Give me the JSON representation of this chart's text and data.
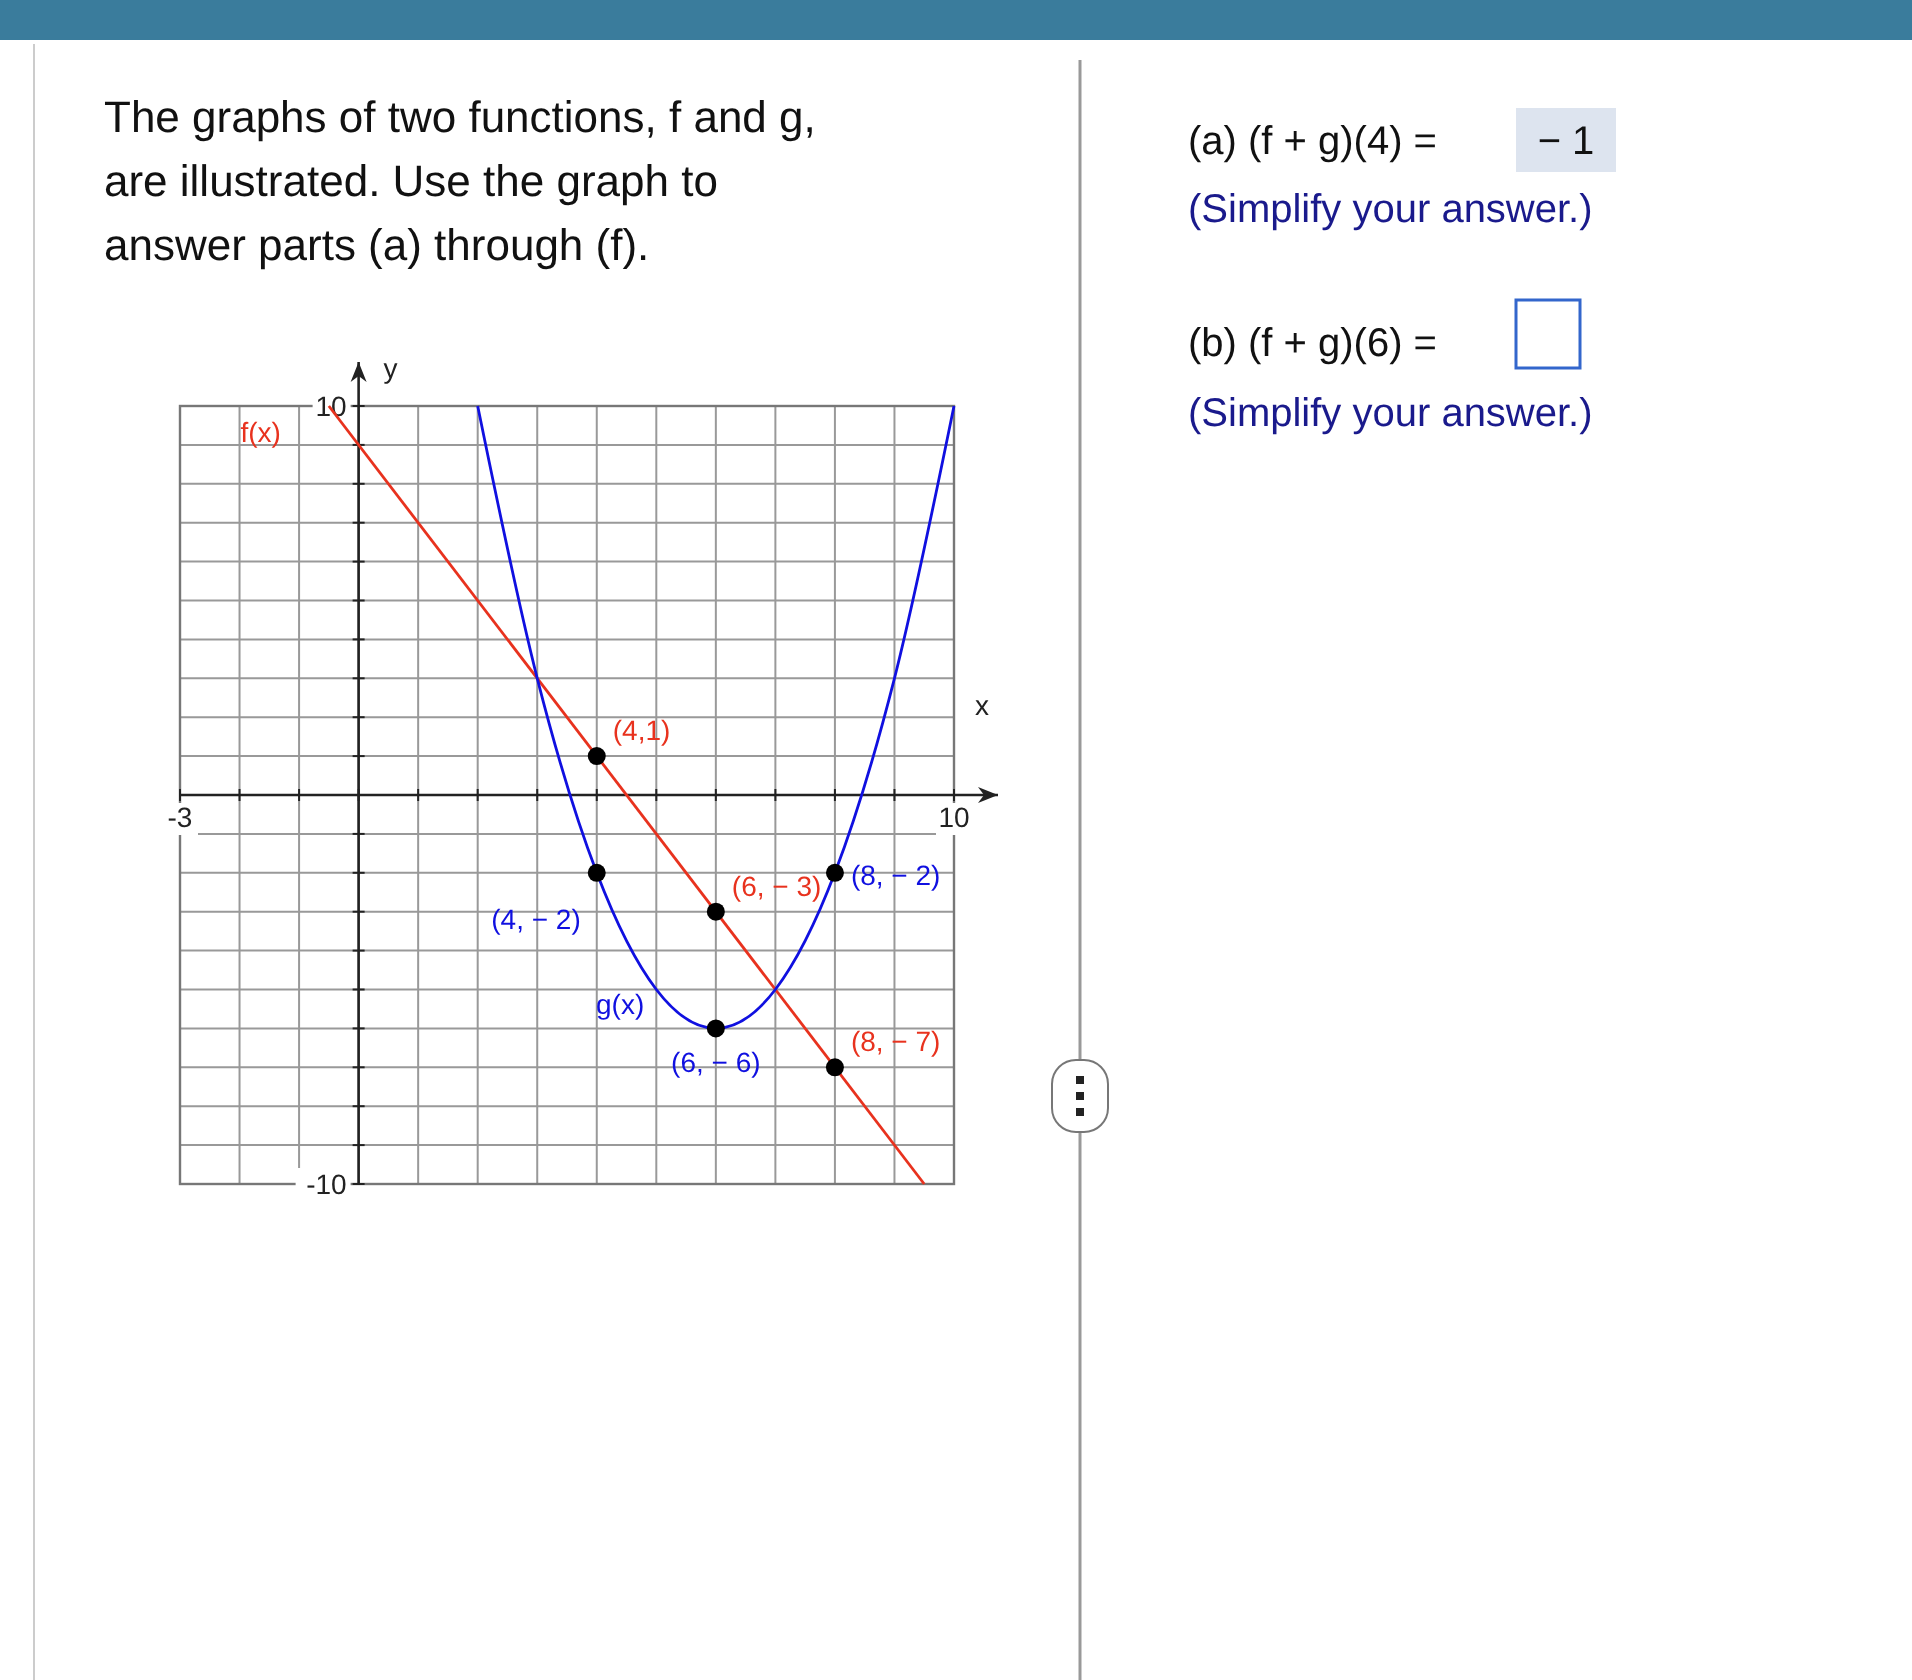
{
  "chart_data": [
    {
      "type": "line",
      "title": "The graphs of two functions, f and g, are illustrated. Use the graph to answer parts (a) through (f).",
      "xlabel": "x",
      "ylabel": "y",
      "xlim": [
        -3,
        10
      ],
      "ylim": [
        -10,
        10
      ],
      "xticks": [
        {
          "value": -3,
          "label": "-3"
        },
        {
          "value": -2,
          "label": null
        },
        {
          "value": -1,
          "label": null
        },
        {
          "value": 0,
          "label": null
        },
        {
          "value": 1,
          "label": null
        },
        {
          "value": 2,
          "label": null
        },
        {
          "value": 3,
          "label": null
        },
        {
          "value": 4,
          "label": null
        },
        {
          "value": 5,
          "label": null
        },
        {
          "value": 6,
          "label": null
        },
        {
          "value": 7,
          "label": null
        },
        {
          "value": 8,
          "label": null
        },
        {
          "value": 9,
          "label": null
        },
        {
          "value": 10,
          "label": "10"
        }
      ],
      "yticks": [
        {
          "value": -10,
          "label": "-10"
        },
        {
          "value": -9,
          "label": null
        },
        {
          "value": -8,
          "label": null
        },
        {
          "value": -7,
          "label": null
        },
        {
          "value": -6,
          "label": null
        },
        {
          "value": -5,
          "label": null
        },
        {
          "value": -4,
          "label": null
        },
        {
          "value": -3,
          "label": null
        },
        {
          "value": -2,
          "label": null
        },
        {
          "value": -1,
          "label": null
        },
        {
          "value": 0,
          "label": null
        },
        {
          "value": 1,
          "label": null
        },
        {
          "value": 2,
          "label": null
        },
        {
          "value": 3,
          "label": null
        },
        {
          "value": 4,
          "label": null
        },
        {
          "value": 5,
          "label": null
        },
        {
          "value": 6,
          "label": null
        },
        {
          "value": 7,
          "label": null
        },
        {
          "value": 8,
          "label": null
        },
        {
          "value": 9,
          "label": null
        },
        {
          "value": 10,
          "label": "10"
        }
      ],
      "grid": true,
      "series": [
        {
          "name": "f(x)",
          "color": "#e8321e",
          "x": [
            -0.5,
            9.5
          ],
          "values": [
            10,
            -10
          ]
        },
        {
          "name": "g(x)",
          "color": "#1010e0",
          "x": [
            2,
            3,
            4,
            5,
            6,
            7,
            8,
            9,
            10
          ],
          "values": [
            10,
            3,
            -2,
            -5,
            -6,
            -5,
            -2,
            3,
            10
          ]
        },
        {
          "type": "scatter",
          "color": "#000000",
          "marker": "circle",
          "x": [
            4,
            6,
            8,
            4,
            6,
            8
          ],
          "values": [
            1,
            -3,
            -7,
            -2,
            -6,
            -2
          ]
        }
      ],
      "annotations": [
        {
          "text": "(4,1)",
          "x": 4,
          "y": 1
        },
        {
          "text": "(6, − 3)",
          "x": 6,
          "y": -3
        },
        {
          "text": "(8, − 7)",
          "x": 8,
          "y": -7
        },
        {
          "text": "(4, − 2)",
          "x": 4,
          "y": -2
        },
        {
          "text": "(6, − 6)",
          "x": 6,
          "y": -6
        },
        {
          "text": "(8, − 2)",
          "x": 8,
          "y": -2
        }
      ]
    },
    {
      "type": "other",
      "annotations": [
        "(a) (f + g)(4) =",
        "− 1",
        "(Simplify your answer.)",
        "(b) (f + g)(6) =",
        "(Simplify your answer.)"
      ]
    }
  ]
}
